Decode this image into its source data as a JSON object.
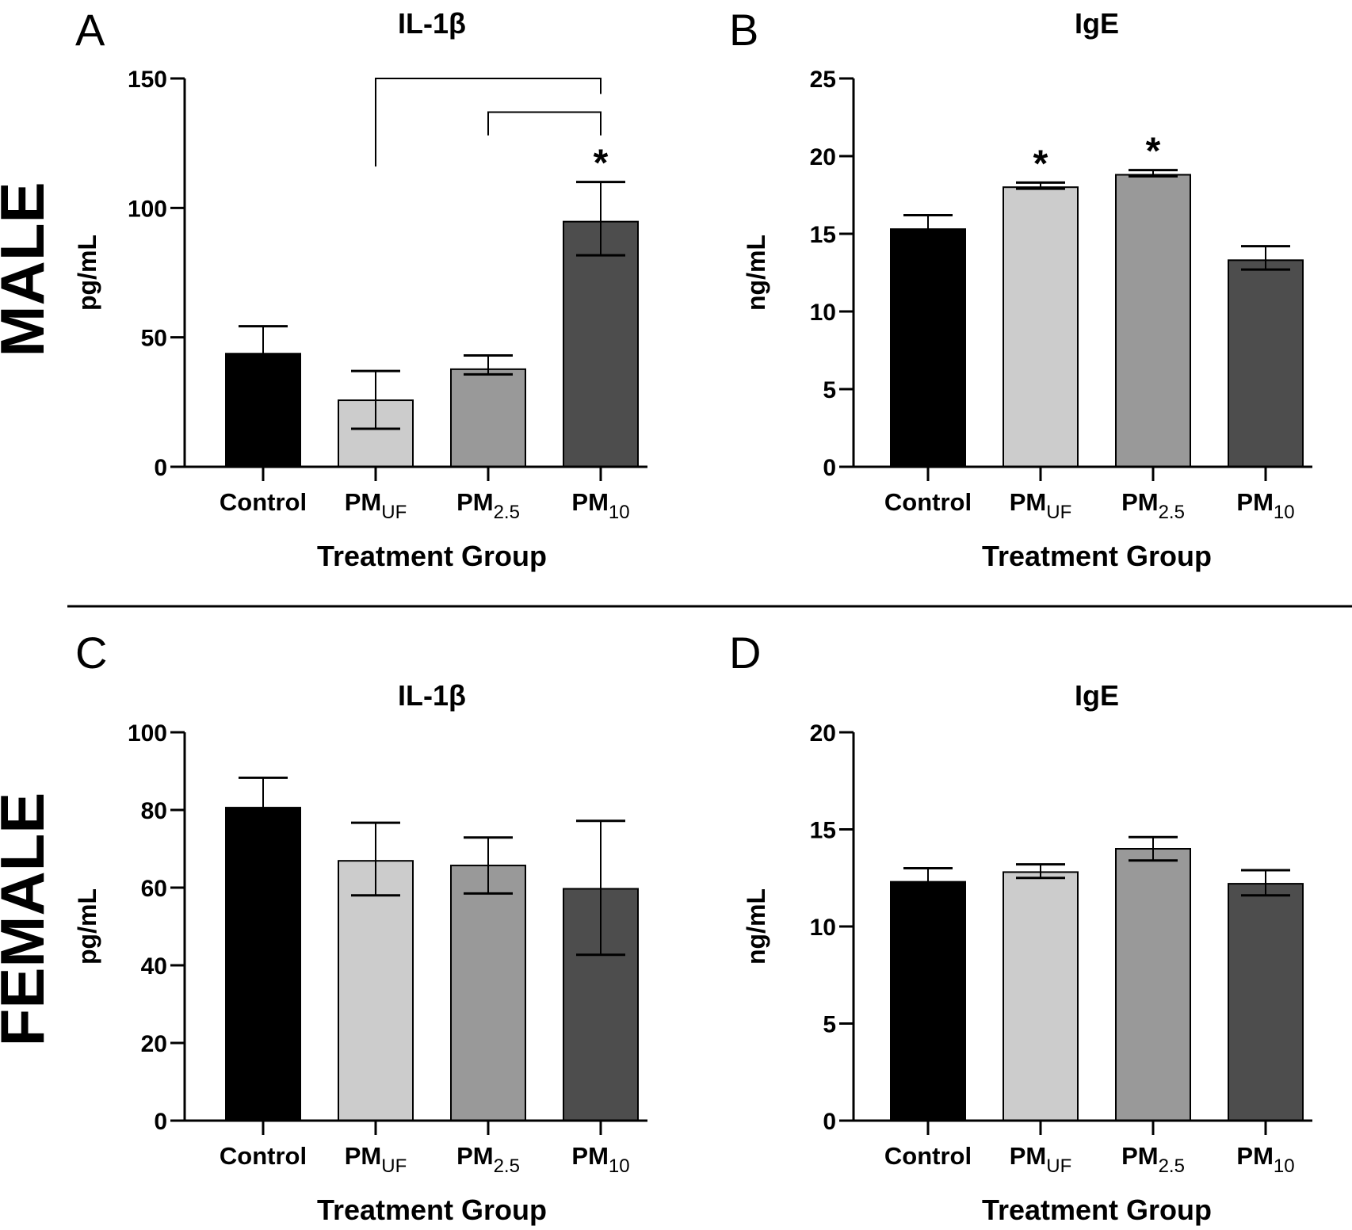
{
  "figure": {
    "row_labels": [
      "MALE",
      "FEMALE"
    ],
    "xlabel": "Treatment Group"
  },
  "chart_data": [
    {
      "type": "bar",
      "panel": "A",
      "row": "MALE",
      "title": "IL-1β",
      "xlabel": "Treatment Group",
      "ylabel": "pg/mL",
      "ylim": [
        0,
        150
      ],
      "yticks": [
        0,
        50,
        100,
        150
      ],
      "categories": [
        {
          "main": "Control",
          "sub": ""
        },
        {
          "main": "PM",
          "sub": "UF"
        },
        {
          "main": "PM",
          "sub": "2.5"
        },
        {
          "main": "PM",
          "sub": "10"
        }
      ],
      "values": [
        43.7,
        25.7,
        37.7,
        94.7
      ],
      "error_upper": [
        54.3,
        37.0,
        43.0,
        110.0
      ],
      "error_lower": [
        null,
        14.7,
        35.7,
        81.7
      ],
      "colors": [
        "#000000",
        "#cccccc",
        "#999999",
        "#4d4d4d"
      ],
      "significance_stars": [
        false,
        false,
        false,
        true
      ],
      "brackets": [
        {
          "from": 1,
          "to": 3,
          "level": 150
        },
        {
          "from": 2,
          "to": 3,
          "level": 137
        }
      ]
    },
    {
      "type": "bar",
      "panel": "B",
      "row": "MALE",
      "title": "IgE",
      "xlabel": "Treatment Group",
      "ylabel": "ng/mL",
      "ylim": [
        0,
        25
      ],
      "yticks": [
        0,
        5,
        10,
        15,
        20,
        25
      ],
      "categories": [
        {
          "main": "Control",
          "sub": ""
        },
        {
          "main": "PM",
          "sub": "UF"
        },
        {
          "main": "PM",
          "sub": "2.5"
        },
        {
          "main": "PM",
          "sub": "10"
        }
      ],
      "values": [
        15.3,
        18.0,
        18.8,
        13.3
      ],
      "error_upper": [
        16.2,
        18.3,
        19.1,
        14.2
      ],
      "error_lower": [
        null,
        17.9,
        18.7,
        12.7
      ],
      "colors": [
        "#000000",
        "#cccccc",
        "#999999",
        "#4d4d4d"
      ],
      "significance_stars": [
        false,
        true,
        true,
        false
      ],
      "brackets": []
    },
    {
      "type": "bar",
      "panel": "C",
      "row": "FEMALE",
      "title": "IL-1β",
      "xlabel": "Treatment Group",
      "ylabel": "pg/mL",
      "ylim": [
        0,
        100
      ],
      "yticks": [
        0,
        20,
        40,
        60,
        80,
        100
      ],
      "categories": [
        {
          "main": "Control",
          "sub": ""
        },
        {
          "main": "PM",
          "sub": "UF"
        },
        {
          "main": "PM",
          "sub": "2.5"
        },
        {
          "main": "PM",
          "sub": "10"
        }
      ],
      "values": [
        80.6,
        66.9,
        65.7,
        59.7
      ],
      "error_upper": [
        88.3,
        76.7,
        72.9,
        77.2
      ],
      "error_lower": [
        null,
        58.0,
        58.5,
        42.7
      ],
      "colors": [
        "#000000",
        "#cccccc",
        "#999999",
        "#4d4d4d"
      ],
      "significance_stars": [
        false,
        false,
        false,
        false
      ],
      "brackets": []
    },
    {
      "type": "bar",
      "panel": "D",
      "row": "FEMALE",
      "title": "IgE",
      "xlabel": "Treatment Group",
      "ylabel": "ng/mL",
      "ylim": [
        0,
        20
      ],
      "yticks": [
        0,
        5,
        10,
        15,
        20
      ],
      "categories": [
        {
          "main": "Control",
          "sub": ""
        },
        {
          "main": "PM",
          "sub": "UF"
        },
        {
          "main": "PM",
          "sub": "2.5"
        },
        {
          "main": "PM",
          "sub": "10"
        }
      ],
      "values": [
        12.3,
        12.8,
        14.0,
        12.2
      ],
      "error_upper": [
        13.0,
        13.2,
        14.6,
        12.9
      ],
      "error_lower": [
        null,
        12.5,
        13.4,
        11.6
      ],
      "colors": [
        "#000000",
        "#cccccc",
        "#999999",
        "#4d4d4d"
      ],
      "significance_stars": [
        false,
        false,
        false,
        false
      ],
      "brackets": []
    }
  ]
}
